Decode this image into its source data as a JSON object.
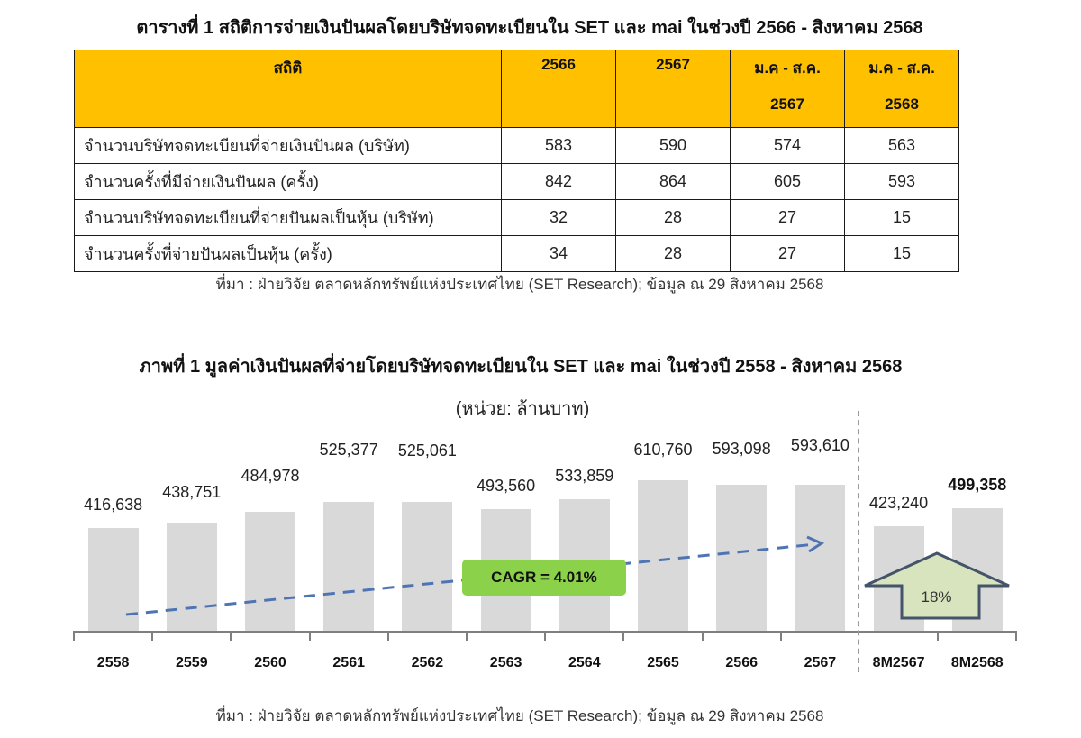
{
  "table": {
    "title": "ตารางที่ 1 สถิติการจ่ายเงินปันผลโดยบริษัทจดทะเบียนใน SET และ mai ในช่วงปี 2566 - สิงหาคม 2568",
    "headers": [
      {
        "line1": "สถิติ",
        "line2": ""
      },
      {
        "line1": "2566",
        "line2": ""
      },
      {
        "line1": "2567",
        "line2": ""
      },
      {
        "line1": "ม.ค - ส.ค.",
        "line2": "2567"
      },
      {
        "line1": "ม.ค - ส.ค.",
        "line2": "2568"
      }
    ],
    "rows": [
      {
        "label": "จำนวนบริษัทจดทะเบียนที่จ่ายเงินปันผล (บริษัท)",
        "values": [
          "583",
          "590",
          "574",
          "563"
        ]
      },
      {
        "label": "จำนวนครั้งที่มีจ่ายเงินปันผล (ครั้ง)",
        "values": [
          "842",
          "864",
          "605",
          "593"
        ]
      },
      {
        "label": "จำนวนบริษัทจดทะเบียนที่จ่ายปันผลเป็นหุ้น (บริษัท)",
        "values": [
          "32",
          "28",
          "27",
          "15"
        ]
      },
      {
        "label": "จำนวนครั้งที่จ่ายปันผลเป็นหุ้น (ครั้ง)",
        "values": [
          "34",
          "28",
          "27",
          "15"
        ]
      }
    ],
    "source": "ที่มา : ฝ่ายวิจัย ตลาดหลักทรัพย์แห่งประเทศไทย (SET Research); ข้อมูล ณ 29 สิงหาคม 2568"
  },
  "chart": {
    "title": "ภาพที่ 1 มูลค่าเงินปันผลที่จ่ายโดยบริษัทจดทะเบียนใน SET และ mai ในช่วงปี 2558 - สิงหาคม 2568",
    "unit": "(หน่วย:  ล้านบาท)",
    "cagr_label": "CAGR = 4.01%",
    "growth_label": "18%",
    "source": "ที่มา : ฝ่ายวิจัย ตลาดหลักทรัพย์แห่งประเทศไทย (SET Research); ข้อมูล ณ 29 สิงหาคม 2568",
    "value_labels": [
      "416,638",
      "438,751",
      "484,978",
      "525,377",
      "525,061",
      "493,560",
      "533,859",
      "610,760",
      "593,098",
      "593,610",
      "423,240",
      "499,358"
    ]
  },
  "colors": {
    "header_bg": "#ffc000",
    "bar": "#d9d9d9",
    "trend_line": "#4f74b3",
    "cagr_box": "#8cd14a",
    "growth_arrow_fill": "#d7e4bd",
    "growth_arrow_stroke": "#44546a"
  },
  "chart_data": {
    "type": "bar",
    "title": "ภาพที่ 1 มูลค่าเงินปันผลที่จ่ายโดยบริษัทจดทะเบียนใน SET และ mai ในช่วงปี 2558 - สิงหาคม 2568",
    "subtitle": "(หน่วย: ล้านบาท)",
    "categories": [
      "2558",
      "2559",
      "2560",
      "2561",
      "2562",
      "2563",
      "2564",
      "2565",
      "2566",
      "2567",
      "8M2567",
      "8M2568"
    ],
    "values": [
      416638,
      438751,
      484978,
      525377,
      525061,
      493560,
      533859,
      610760,
      593098,
      593610,
      423240,
      499358
    ],
    "xlabel": "",
    "ylabel": "ล้านบาท",
    "ylim": [
      0,
      650000
    ],
    "grid": false,
    "legend": null,
    "annotations": [
      {
        "text": "CAGR = 4.01%",
        "type": "dashed trend arrow 2558-2567"
      },
      {
        "text": "18%",
        "type": "up arrow comparing 8M2567 to 8M2568"
      }
    ]
  }
}
